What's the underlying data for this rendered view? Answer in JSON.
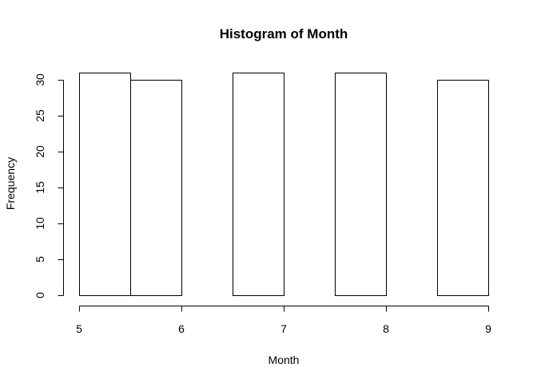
{
  "chart_data": {
    "type": "bar",
    "title": "Histogram of Month",
    "xlabel": "Month",
    "ylabel": "Frequency",
    "bins": [
      {
        "from": 5.0,
        "to": 5.5,
        "count": 31
      },
      {
        "from": 5.5,
        "to": 6.0,
        "count": 30
      },
      {
        "from": 6.0,
        "to": 6.5,
        "count": 0
      },
      {
        "from": 6.5,
        "to": 7.0,
        "count": 31
      },
      {
        "from": 7.0,
        "to": 7.5,
        "count": 0
      },
      {
        "from": 7.5,
        "to": 8.0,
        "count": 31
      },
      {
        "from": 8.0,
        "to": 8.5,
        "count": 0
      },
      {
        "from": 8.5,
        "to": 9.0,
        "count": 30
      }
    ],
    "xlim": [
      5,
      9
    ],
    "ylim": [
      0,
      30
    ],
    "xticks": [
      "5",
      "6",
      "7",
      "8",
      "9"
    ],
    "yticks": [
      "0",
      "5",
      "10",
      "15",
      "20",
      "25",
      "30"
    ],
    "grid": false,
    "colors": {
      "bar_fill": "#ffffff",
      "bar_stroke": "#000000"
    }
  }
}
